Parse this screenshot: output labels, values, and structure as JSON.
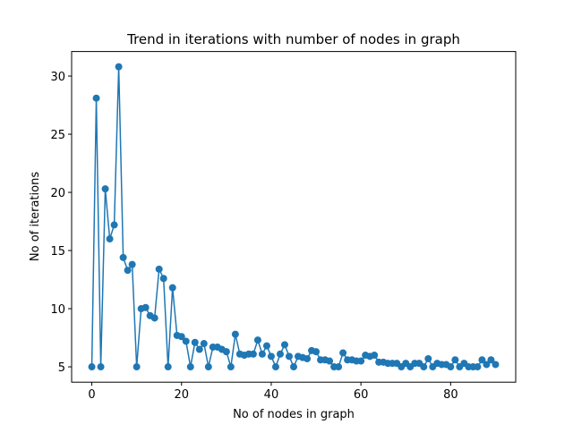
{
  "chart_data": {
    "type": "line",
    "title": "Trend in iterations with number of nodes in graph",
    "x_label": "No of nodes in graph",
    "y_label": "No of iterations",
    "x": [
      0,
      1,
      2,
      3,
      4,
      5,
      6,
      7,
      8,
      9,
      10,
      11,
      12,
      13,
      14,
      15,
      16,
      17,
      18,
      19,
      20,
      21,
      22,
      23,
      24,
      25,
      26,
      27,
      28,
      29,
      30,
      31,
      32,
      33,
      34,
      35,
      36,
      37,
      38,
      39,
      40,
      41,
      42,
      43,
      44,
      45,
      46,
      47,
      48,
      49,
      50,
      51,
      52,
      53,
      54,
      55,
      56,
      57,
      58,
      59,
      60,
      61,
      62,
      63,
      64,
      65,
      66,
      67,
      68,
      69,
      70,
      71,
      72,
      73,
      74,
      75,
      76,
      77,
      78,
      79,
      80,
      81,
      82,
      83,
      84,
      85,
      86,
      87,
      88,
      89,
      90
    ],
    "series": [
      {
        "color": "#1f77b4",
        "values": [
          5,
          28.1,
          5,
          20.3,
          16,
          17.2,
          30.8,
          14.4,
          13.3,
          13.8,
          5,
          10,
          10.1,
          9.4,
          9.2,
          13.4,
          12.6,
          5,
          11.8,
          7.7,
          7.6,
          7.2,
          5,
          7.1,
          6.5,
          7,
          5,
          6.7,
          6.7,
          6.5,
          6.3,
          5,
          7.8,
          6.1,
          6,
          6.1,
          6.1,
          7.3,
          6.1,
          6.8,
          5.9,
          5,
          6.1,
          6.9,
          5.9,
          5,
          5.9,
          5.8,
          5.7,
          6.4,
          6.3,
          5.6,
          5.6,
          5.5,
          5,
          5,
          6.2,
          5.6,
          5.6,
          5.5,
          5.5,
          6,
          5.9,
          6,
          5.4,
          5.4,
          5.3,
          5.3,
          5.3,
          5,
          5.3,
          5,
          5.3,
          5.3,
          5,
          5.7,
          5,
          5.3,
          5.2,
          5.2,
          5,
          5.6,
          5,
          5.3,
          5,
          5,
          5,
          5.6,
          5.2,
          5.6,
          5.2
        ]
      }
    ],
    "xlim": [
      -4.5,
      94.5
    ],
    "ylim": [
      3.68,
      32.11
    ],
    "xticks": [
      0,
      20,
      40,
      60,
      80
    ],
    "yticks": [
      5,
      10,
      15,
      20,
      25,
      30
    ]
  }
}
